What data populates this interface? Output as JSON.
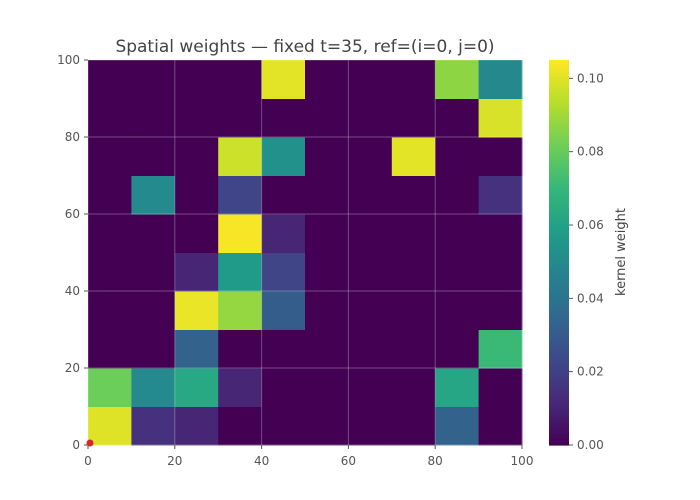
{
  "chart_data": {
    "type": "heatmap",
    "title": "Spatial weights — fixed t=35, ref=(i=0, j=0)",
    "xlabel": "",
    "ylabel": "",
    "xlim": [
      0,
      100
    ],
    "ylim": [
      0,
      100
    ],
    "grid": true,
    "colormap": "viridis",
    "x_ticks": [
      "0",
      "20",
      "40",
      "60",
      "80",
      "100"
    ],
    "y_ticks": [
      "0",
      "20",
      "40",
      "60",
      "80",
      "100"
    ],
    "x_edges": [
      0,
      10,
      20,
      30,
      40,
      50,
      60,
      70,
      80,
      90,
      100
    ],
    "y_edges": [
      0,
      10,
      20,
      30,
      40,
      50,
      60,
      70,
      80,
      90,
      100
    ],
    "z_rows_bottom_to_top": [
      [
        0.1,
        0.015,
        0.011,
        0,
        0,
        0,
        0,
        0,
        0.033,
        0
      ],
      [
        0.081,
        0.05,
        0.063,
        0.011,
        0,
        0,
        0,
        0,
        0.062,
        0
      ],
      [
        0,
        0,
        0.033,
        0,
        0,
        0,
        0,
        0,
        0,
        0.071
      ],
      [
        0,
        0,
        0.102,
        0.088,
        0.031,
        0,
        0,
        0,
        0,
        0
      ],
      [
        0,
        0,
        0.011,
        0.057,
        0.022,
        0,
        0,
        0,
        0,
        0
      ],
      [
        0,
        0,
        0,
        0.104,
        0.011,
        0,
        0,
        0,
        0,
        0
      ],
      [
        0,
        0.05,
        0,
        0.022,
        0,
        0,
        0,
        0,
        0,
        0.015
      ],
      [
        0,
        0,
        0,
        0.097,
        0.053,
        0,
        0,
        0.101,
        0,
        0
      ],
      [
        0,
        0,
        0,
        0,
        0,
        0,
        0,
        0,
        0,
        0.099
      ],
      [
        0,
        0,
        0,
        0,
        0.101,
        0,
        0,
        0,
        0.087,
        0.049
      ]
    ],
    "colorbar": {
      "label": "kernel weight",
      "range": [
        0,
        0.105
      ],
      "ticks": [
        0.0,
        0.02,
        0.04,
        0.06,
        0.08,
        0.1
      ],
      "tick_labels": [
        "0.00",
        "0.02",
        "0.04",
        "0.06",
        "0.08",
        "0.10"
      ]
    },
    "reference_marker": {
      "x": 0,
      "y": 0,
      "color": "#d62728"
    }
  }
}
